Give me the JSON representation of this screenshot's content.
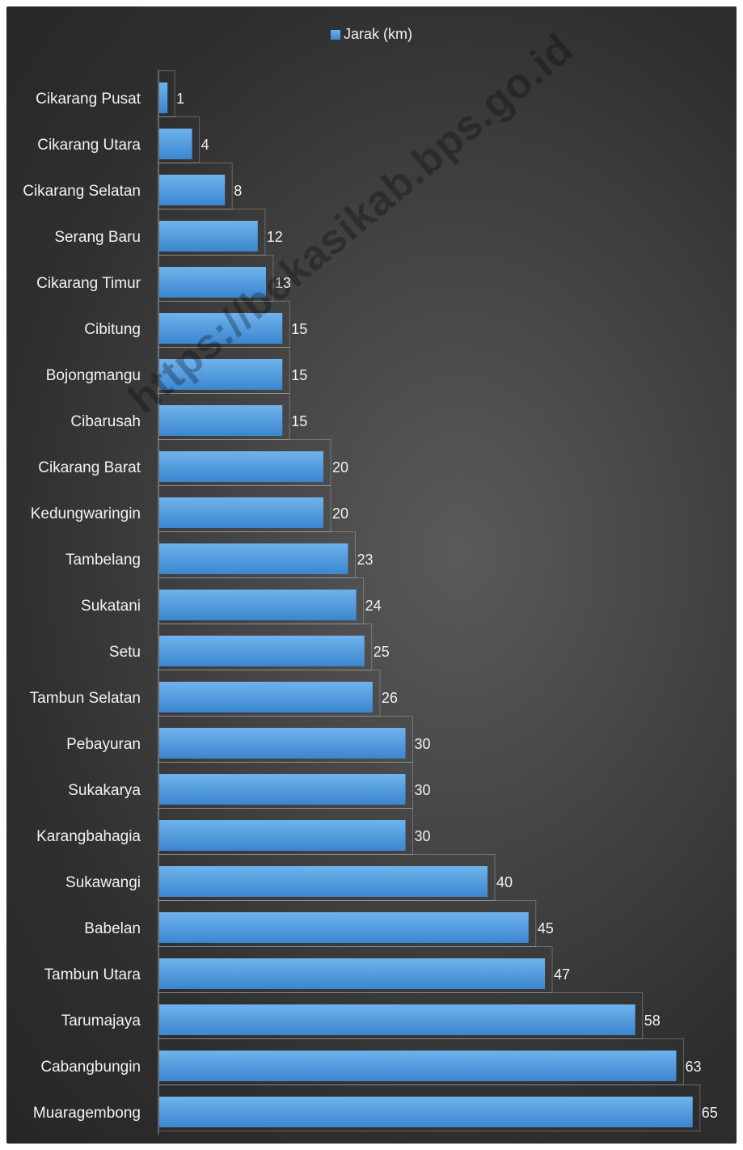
{
  "watermark": "https://bekasikab.bps.go.id",
  "colors": {
    "bar_top": "#6fb3ec",
    "bar_bottom": "#3b86d0",
    "background": "#333333",
    "text": "#f2f2f2"
  },
  "chart_data": {
    "type": "bar",
    "orientation": "horizontal",
    "legend": "top-center",
    "grid": false,
    "series": [
      {
        "name": "Jarak (km)",
        "values": [
          1,
          4,
          8,
          12,
          13,
          15,
          15,
          15,
          20,
          20,
          23,
          24,
          25,
          26,
          30,
          30,
          30,
          40,
          45,
          47,
          58,
          63,
          65
        ]
      }
    ],
    "categories": [
      "Cikarang Pusat",
      "Cikarang Utara",
      "Cikarang Selatan",
      "Serang Baru",
      "Cikarang Timur",
      "Cibitung",
      "Bojongmangu",
      "Cibarusah",
      "Cikarang Barat",
      "Kedungwaringin",
      "Tambelang",
      "Sukatani",
      "Setu",
      "Tambun Selatan",
      "Pebayuran",
      "Sukakarya",
      "Karangbahagia",
      "Sukawangi",
      "Babelan",
      "Tambun Utara",
      "Tarumajaya",
      "Cabangbungin",
      "Muaragembong"
    ],
    "xlim": [
      0,
      65
    ],
    "data_labels": true
  }
}
